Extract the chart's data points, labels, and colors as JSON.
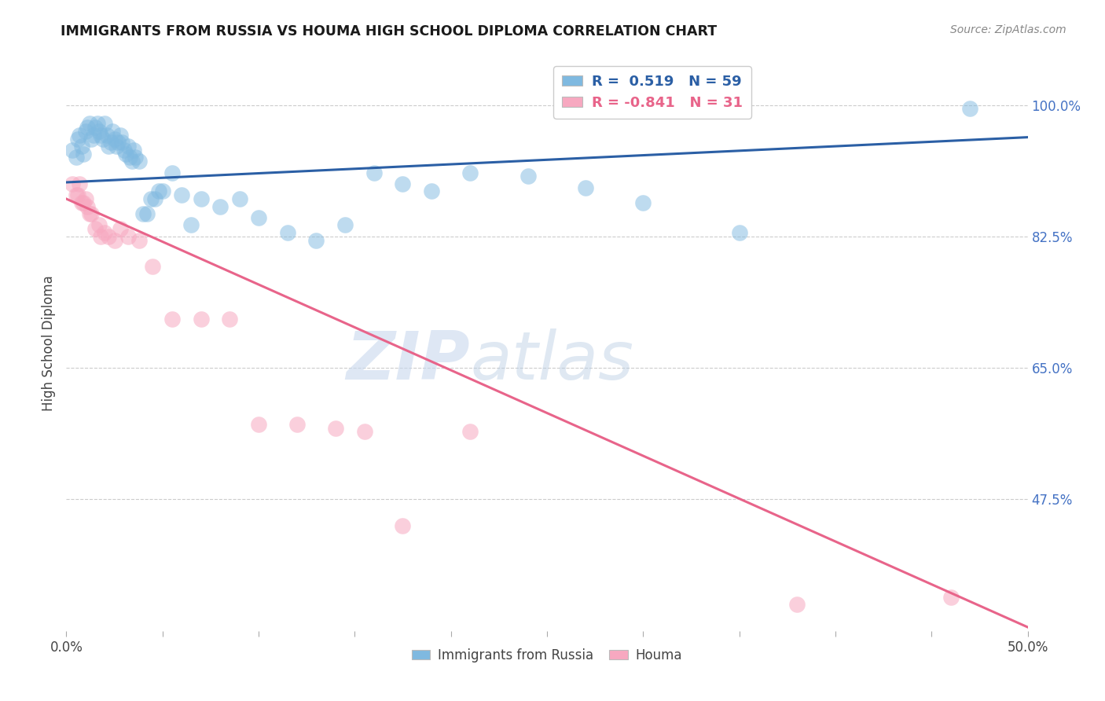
{
  "title": "IMMIGRANTS FROM RUSSIA VS HOUMA HIGH SCHOOL DIPLOMA CORRELATION CHART",
  "source": "Source: ZipAtlas.com",
  "ylabel": "High School Diploma",
  "yticks_labels": [
    "100.0%",
    "82.5%",
    "65.0%",
    "47.5%"
  ],
  "ytick_vals": [
    1.0,
    0.825,
    0.65,
    0.475
  ],
  "xlim": [
    0.0,
    0.5
  ],
  "ylim": [
    0.3,
    1.065
  ],
  "blue_color": "#7fb9e0",
  "pink_color": "#f7a8c0",
  "blue_line_color": "#2b5fa5",
  "pink_line_color": "#e8648a",
  "watermark_zip": "ZIP",
  "watermark_atlas": "atlas",
  "blue_scatter_x": [
    0.003,
    0.005,
    0.006,
    0.007,
    0.008,
    0.009,
    0.01,
    0.011,
    0.012,
    0.013,
    0.014,
    0.015,
    0.016,
    0.017,
    0.018,
    0.019,
    0.02,
    0.021,
    0.022,
    0.023,
    0.024,
    0.025,
    0.026,
    0.027,
    0.028,
    0.029,
    0.03,
    0.031,
    0.032,
    0.033,
    0.034,
    0.035,
    0.036,
    0.038,
    0.04,
    0.042,
    0.044,
    0.046,
    0.048,
    0.05,
    0.055,
    0.06,
    0.065,
    0.07,
    0.08,
    0.09,
    0.1,
    0.115,
    0.13,
    0.145,
    0.16,
    0.175,
    0.19,
    0.21,
    0.24,
    0.27,
    0.3,
    0.35,
    0.47
  ],
  "blue_scatter_y": [
    0.94,
    0.93,
    0.955,
    0.96,
    0.945,
    0.935,
    0.965,
    0.97,
    0.975,
    0.955,
    0.96,
    0.97,
    0.975,
    0.965,
    0.96,
    0.955,
    0.975,
    0.96,
    0.945,
    0.95,
    0.965,
    0.955,
    0.945,
    0.95,
    0.96,
    0.95,
    0.94,
    0.935,
    0.945,
    0.93,
    0.925,
    0.94,
    0.93,
    0.925,
    0.855,
    0.855,
    0.875,
    0.875,
    0.885,
    0.885,
    0.91,
    0.88,
    0.84,
    0.875,
    0.865,
    0.875,
    0.85,
    0.83,
    0.82,
    0.84,
    0.91,
    0.895,
    0.885,
    0.91,
    0.905,
    0.89,
    0.87,
    0.83,
    0.995
  ],
  "pink_scatter_x": [
    0.003,
    0.005,
    0.006,
    0.007,
    0.008,
    0.009,
    0.01,
    0.011,
    0.012,
    0.013,
    0.015,
    0.017,
    0.018,
    0.02,
    0.022,
    0.025,
    0.028,
    0.032,
    0.038,
    0.045,
    0.055,
    0.07,
    0.085,
    0.1,
    0.12,
    0.14,
    0.155,
    0.175,
    0.21,
    0.38,
    0.46
  ],
  "pink_scatter_y": [
    0.895,
    0.88,
    0.88,
    0.895,
    0.87,
    0.87,
    0.875,
    0.865,
    0.855,
    0.855,
    0.835,
    0.84,
    0.825,
    0.83,
    0.825,
    0.82,
    0.835,
    0.825,
    0.82,
    0.785,
    0.715,
    0.715,
    0.715,
    0.575,
    0.575,
    0.57,
    0.565,
    0.44,
    0.565,
    0.335,
    0.345
  ],
  "blue_trend_x": [
    0.0,
    0.5
  ],
  "blue_trend_y": [
    0.897,
    0.957
  ],
  "pink_trend_x": [
    0.0,
    0.5
  ],
  "pink_trend_y": [
    0.875,
    0.305
  ]
}
